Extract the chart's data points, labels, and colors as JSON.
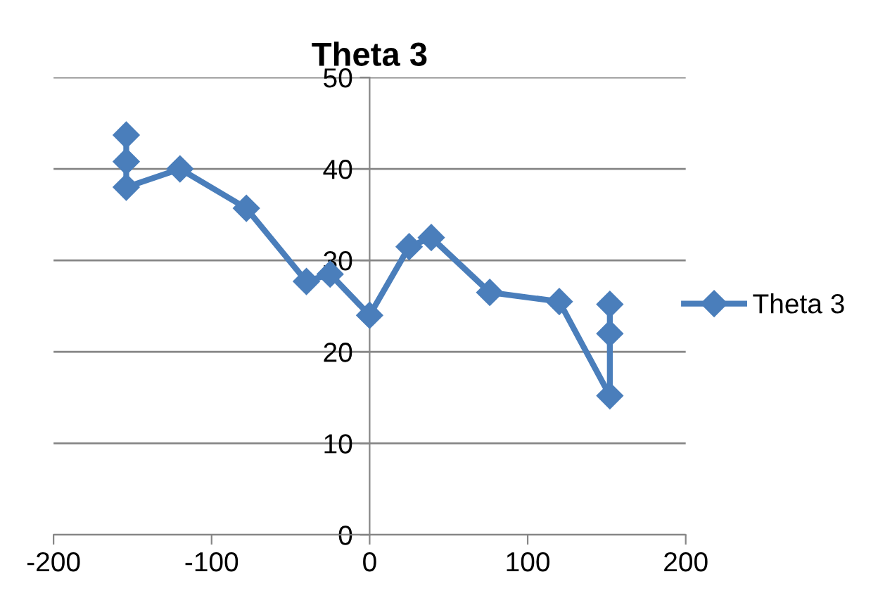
{
  "chart_data": {
    "type": "line",
    "title": "Theta 3",
    "series": [
      {
        "name": "Theta 3",
        "color": "#4a7ebb",
        "x": [
          -154,
          -154,
          -154,
          -120,
          -78,
          -40,
          -25,
          0,
          25,
          39,
          76,
          120,
          152,
          152,
          152
        ],
        "values": [
          43.7,
          40.8,
          38.0,
          40.0,
          35.7,
          27.7,
          28.5,
          24.0,
          31.5,
          32.5,
          26.5,
          25.5,
          15.2,
          22.0,
          25.2
        ]
      }
    ],
    "xlim": [
      -200,
      200
    ],
    "xticks": [
      -200,
      -100,
      0,
      100,
      200
    ],
    "ylim": [
      0,
      50
    ],
    "yticks": [
      0,
      10,
      20,
      30,
      40,
      50
    ],
    "grid": "y",
    "legend": "right",
    "marker": "diamond",
    "line_style": "solid"
  }
}
